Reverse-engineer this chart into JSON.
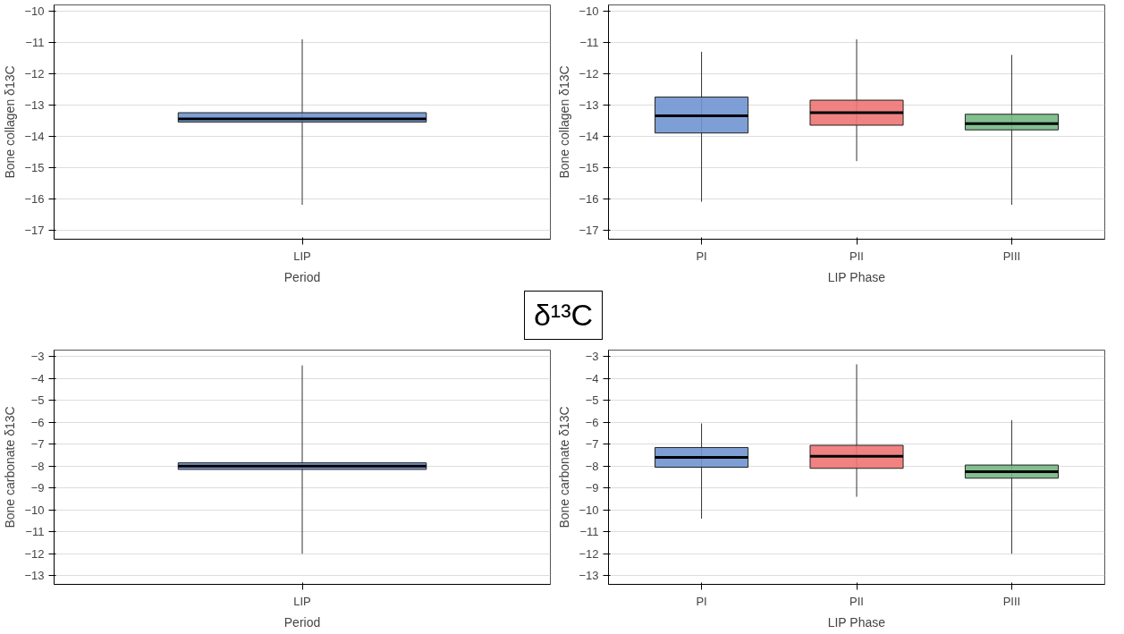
{
  "chart_data": [
    {
      "type": "box",
      "annotations": [
        "δ¹³C"
      ],
      "categories": [
        "LIP"
      ],
      "xlabel": "Period",
      "ylabel": "Bone collagen δ13C",
      "ylim": [
        -17.3,
        -9.8
      ],
      "yticks": [
        -17,
        -16,
        -15,
        -14,
        -13,
        -12,
        -11,
        -10
      ],
      "grid": "y",
      "colors": [
        "#7095d2"
      ],
      "boxes": [
        {
          "low": -16.2,
          "q1": -13.55,
          "median": -13.45,
          "q3": -13.25,
          "high": -10.9
        }
      ]
    },
    {
      "type": "box",
      "categories": [
        "PI",
        "PII",
        "PIII"
      ],
      "xlabel": "LIP Phase",
      "ylabel": "Bone collagen δ13C",
      "ylim": [
        -17.3,
        -9.8
      ],
      "yticks": [
        -17,
        -16,
        -15,
        -14,
        -13,
        -12,
        -11,
        -10
      ],
      "grid": "y",
      "colors": [
        "#7095d2",
        "#ef7474",
        "#74b884"
      ],
      "boxes": [
        {
          "low": -16.1,
          "q1": -13.9,
          "median": -13.35,
          "q3": -12.75,
          "high": -11.3
        },
        {
          "low": -14.8,
          "q1": -13.65,
          "median": -13.25,
          "q3": -12.85,
          "high": -10.9
        },
        {
          "low": -16.2,
          "q1": -13.8,
          "median": -13.6,
          "q3": -13.3,
          "high": -11.4
        }
      ]
    },
    {
      "type": "box",
      "categories": [
        "LIP"
      ],
      "xlabel": "Period",
      "ylabel": "Bone carbonate δ13C",
      "ylim": [
        -13.4,
        -2.7
      ],
      "yticks": [
        -13,
        -12,
        -11,
        -10,
        -9,
        -8,
        -7,
        -6,
        -5,
        -4,
        -3
      ],
      "grid": "y",
      "colors": [
        "#7095d2"
      ],
      "boxes": [
        {
          "low": -12.0,
          "q1": -8.15,
          "median": -8.0,
          "q3": -7.85,
          "high": -3.4
        }
      ]
    },
    {
      "type": "box",
      "categories": [
        "PI",
        "PII",
        "PIII"
      ],
      "xlabel": "LIP Phase",
      "ylabel": "Bone carbonate δ13C",
      "ylim": [
        -13.4,
        -2.7
      ],
      "yticks": [
        -13,
        -12,
        -11,
        -10,
        -9,
        -8,
        -7,
        -6,
        -5,
        -4,
        -3
      ],
      "grid": "y",
      "colors": [
        "#7095d2",
        "#ef7474",
        "#74b884"
      ],
      "boxes": [
        {
          "low": -10.4,
          "q1": -8.05,
          "median": -7.6,
          "q3": -7.15,
          "high": -6.05
        },
        {
          "low": -9.4,
          "q1": -8.1,
          "median": -7.55,
          "q3": -7.05,
          "high": -3.35
        },
        {
          "low": -12.0,
          "q1": -8.55,
          "median": -8.25,
          "q3": -7.95,
          "high": -5.9
        }
      ]
    }
  ]
}
